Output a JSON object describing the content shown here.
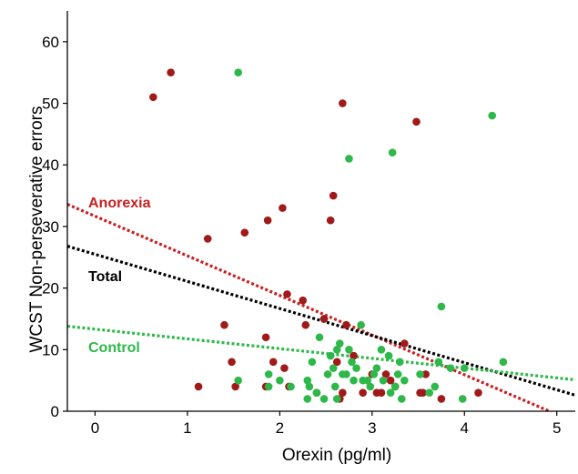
{
  "chart_data": {
    "type": "scatter",
    "xlabel": "Orexin (pg/ml)",
    "ylabel": "WCST Non-perseverative errors",
    "xlim": [
      -0.3,
      5.2
    ],
    "ylim": [
      0,
      65
    ],
    "xticks": [
      0,
      1,
      2,
      3,
      4,
      5
    ],
    "yticks": [
      0,
      10,
      20,
      30,
      40,
      50,
      60
    ],
    "grid": false,
    "legend": "none",
    "series": [
      {
        "name": "Anorexia",
        "color": "#a01a1a",
        "points": [
          [
            0.63,
            51
          ],
          [
            0.82,
            55
          ],
          [
            1.12,
            4
          ],
          [
            1.22,
            28
          ],
          [
            1.4,
            14
          ],
          [
            1.48,
            8
          ],
          [
            1.52,
            4
          ],
          [
            1.62,
            29
          ],
          [
            1.85,
            4
          ],
          [
            1.87,
            31
          ],
          [
            1.93,
            8
          ],
          [
            2.03,
            33
          ],
          [
            2.05,
            7
          ],
          [
            2.08,
            19
          ],
          [
            2.1,
            4
          ],
          [
            2.25,
            18
          ],
          [
            2.28,
            14
          ],
          [
            2.4,
            3
          ],
          [
            2.48,
            15
          ],
          [
            2.55,
            31
          ],
          [
            2.58,
            35
          ],
          [
            2.62,
            8
          ],
          [
            2.65,
            2
          ],
          [
            2.68,
            3
          ],
          [
            2.68,
            50
          ],
          [
            2.72,
            14
          ],
          [
            2.8,
            9
          ],
          [
            2.9,
            3
          ],
          [
            3.0,
            6
          ],
          [
            3.05,
            3
          ],
          [
            3.1,
            3
          ],
          [
            3.15,
            6
          ],
          [
            3.2,
            5
          ],
          [
            3.25,
            4
          ],
          [
            3.35,
            11
          ],
          [
            3.48,
            47
          ],
          [
            3.52,
            3
          ],
          [
            3.55,
            3
          ],
          [
            3.58,
            6
          ],
          [
            3.75,
            2
          ],
          [
            4.15,
            3
          ],
          [
            1.85,
            12
          ]
        ]
      },
      {
        "name": "Control",
        "color": "#2eb84a",
        "points": [
          [
            1.55,
            55
          ],
          [
            1.55,
            5
          ],
          [
            1.88,
            4
          ],
          [
            1.88,
            6
          ],
          [
            2.0,
            5
          ],
          [
            2.12,
            4
          ],
          [
            2.3,
            2
          ],
          [
            2.3,
            5
          ],
          [
            2.32,
            4
          ],
          [
            2.35,
            8
          ],
          [
            2.4,
            3
          ],
          [
            2.43,
            12
          ],
          [
            2.48,
            2
          ],
          [
            2.52,
            6
          ],
          [
            2.55,
            9
          ],
          [
            2.58,
            7
          ],
          [
            2.6,
            4
          ],
          [
            2.62,
            10
          ],
          [
            2.62,
            2
          ],
          [
            2.65,
            11
          ],
          [
            2.68,
            6
          ],
          [
            2.72,
            6
          ],
          [
            2.75,
            41
          ],
          [
            2.75,
            10
          ],
          [
            2.78,
            8
          ],
          [
            2.8,
            5
          ],
          [
            2.83,
            7
          ],
          [
            2.88,
            14
          ],
          [
            2.9,
            5
          ],
          [
            2.95,
            5
          ],
          [
            2.98,
            4
          ],
          [
            3.02,
            6
          ],
          [
            3.05,
            7
          ],
          [
            3.1,
            10
          ],
          [
            3.12,
            5
          ],
          [
            3.18,
            9
          ],
          [
            3.2,
            3
          ],
          [
            3.22,
            42
          ],
          [
            3.25,
            4
          ],
          [
            3.28,
            6
          ],
          [
            3.3,
            8
          ],
          [
            3.32,
            2
          ],
          [
            3.35,
            5
          ],
          [
            3.52,
            6
          ],
          [
            3.62,
            3
          ],
          [
            3.68,
            4
          ],
          [
            3.72,
            8
          ],
          [
            3.75,
            17
          ],
          [
            3.85,
            7
          ],
          [
            3.98,
            2
          ],
          [
            4.0,
            7
          ],
          [
            4.3,
            48
          ],
          [
            4.42,
            8
          ]
        ]
      }
    ],
    "trendlines": [
      {
        "name": "Anorexia",
        "color": "#c82020",
        "x": [
          -0.3,
          4.92
        ],
        "y": [
          33.6,
          0
        ]
      },
      {
        "name": "Total",
        "color": "#000000",
        "x": [
          -0.3,
          5.2
        ],
        "y": [
          26.8,
          2.6
        ]
      },
      {
        "name": "Control",
        "color": "#2eb84a",
        "x": [
          -0.3,
          5.2
        ],
        "y": [
          13.8,
          5.1
        ]
      }
    ]
  }
}
